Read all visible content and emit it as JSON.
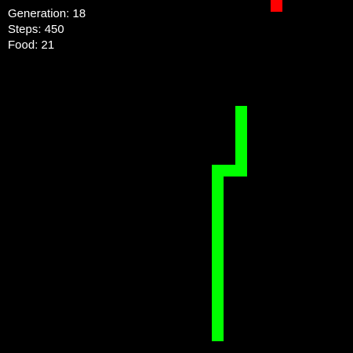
{
  "hud": {
    "generation_label": "Generation: 18",
    "steps_label": "Steps: 450",
    "food_label": "Food: 21"
  },
  "game": {
    "grid_cols": 30,
    "grid_rows": 30,
    "snake_color": "#00ff00",
    "food_color": "#ff0000",
    "background_color": "#000000",
    "snake_cells": [
      [
        20,
        9
      ],
      [
        20,
        10
      ],
      [
        20,
        11
      ],
      [
        20,
        12
      ],
      [
        20,
        13
      ],
      [
        20,
        14
      ],
      [
        19,
        14
      ],
      [
        18,
        14
      ],
      [
        18,
        15
      ],
      [
        18,
        16
      ],
      [
        18,
        17
      ],
      [
        18,
        18
      ],
      [
        18,
        19
      ],
      [
        18,
        20
      ],
      [
        18,
        21
      ],
      [
        18,
        22
      ],
      [
        18,
        23
      ],
      [
        18,
        24
      ],
      [
        18,
        25
      ],
      [
        18,
        26
      ],
      [
        18,
        27
      ],
      [
        18,
        28
      ]
    ],
    "food_cell": [
      23,
      0
    ]
  }
}
